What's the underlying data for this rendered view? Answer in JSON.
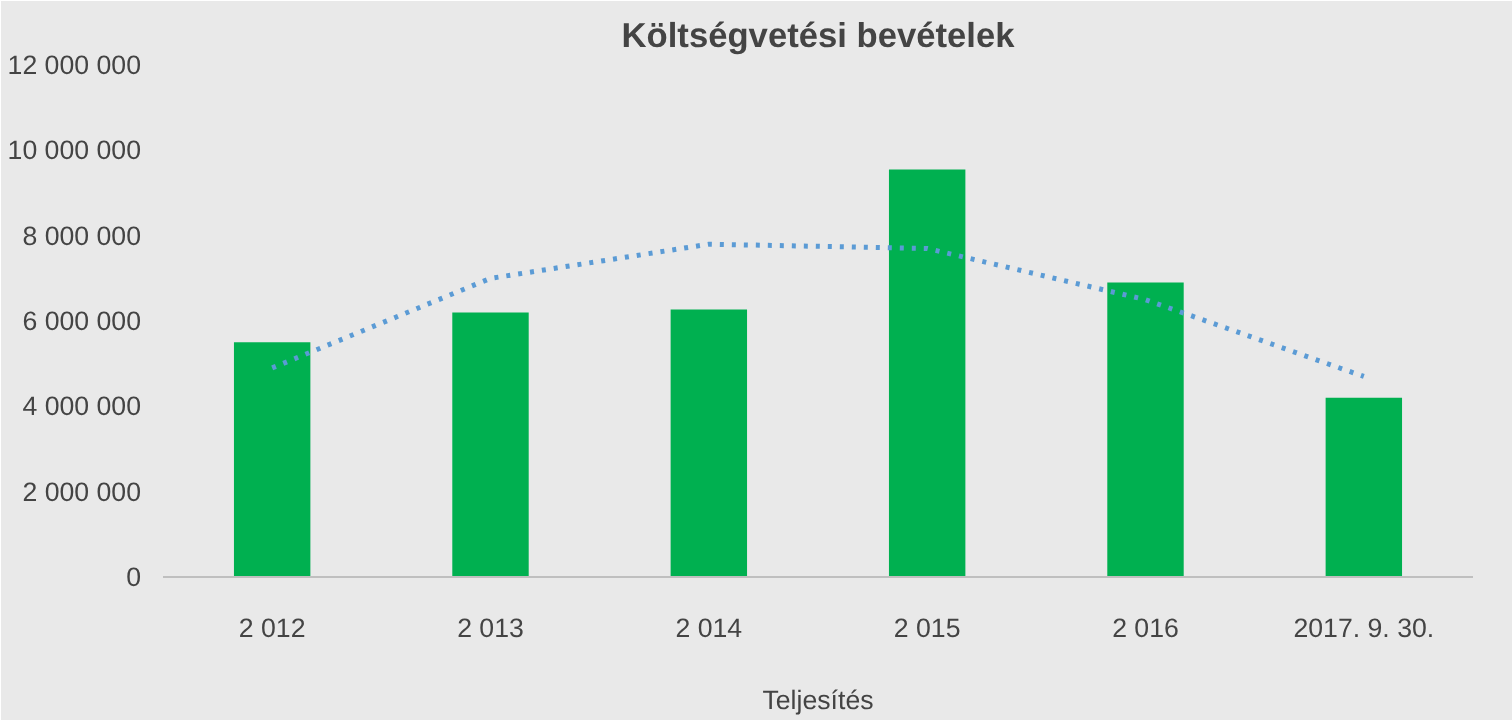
{
  "chart_data": {
    "type": "bar",
    "title": "Költségvetési bevételek",
    "xlabel": "Teljesítés",
    "categories": [
      "2 012",
      "2 013",
      "2 014",
      "2 015",
      "2 016",
      "2017. 9. 30."
    ],
    "series": [
      {
        "color": "#00b050",
        "values": [
          5500000,
          6200000,
          6270000,
          9550000,
          6900000,
          4200000
        ]
      },
      {
        "type": "line",
        "color": "#5b9bd5",
        "line_style": "dotted",
        "values": [
          4900000,
          7000000,
          7800000,
          7700000,
          6500000,
          4700000
        ]
      }
    ],
    "ylim": [
      0,
      12000000
    ],
    "yticks": [
      {
        "value": 0,
        "label": "0"
      },
      {
        "value": 2000000,
        "label": "2 000 000"
      },
      {
        "value": 4000000,
        "label": "4 000 000"
      },
      {
        "value": 6000000,
        "label": "6 000 000"
      },
      {
        "value": 8000000,
        "label": "8 000 000"
      },
      {
        "value": 10000000,
        "label": "10 000 000"
      },
      {
        "value": 12000000,
        "label": "12 000 000"
      }
    ]
  }
}
